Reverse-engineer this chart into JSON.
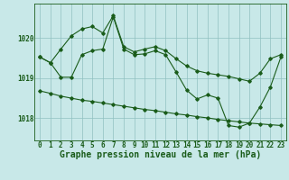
{
  "title": "Graphe pression niveau de la mer (hPa)",
  "background_color": "#c8e8e8",
  "grid_color": "#90c0c0",
  "line_color": "#1a5c1a",
  "x_labels": [
    "0",
    "1",
    "2",
    "3",
    "4",
    "5",
    "6",
    "7",
    "8",
    "9",
    "10",
    "11",
    "12",
    "13",
    "14",
    "15",
    "16",
    "17",
    "18",
    "19",
    "20",
    "21",
    "22",
    "23"
  ],
  "yticks": [
    1018,
    1019,
    1020
  ],
  "ylim": [
    1017.45,
    1020.85
  ],
  "xlim": [
    -0.5,
    23.5
  ],
  "series_high": [
    1019.52,
    1019.38,
    1019.72,
    1020.05,
    1020.22,
    1020.28,
    1020.12,
    1020.55,
    1019.78,
    1019.65,
    1019.72,
    1019.78,
    1019.68,
    1019.48,
    1019.3,
    1019.18,
    1019.12,
    1019.08,
    1019.04,
    1018.98,
    1018.92,
    1019.12,
    1019.48,
    1019.58
  ],
  "series_mid": [
    1019.52,
    1019.38,
    1019.02,
    1019.02,
    1019.58,
    1019.68,
    1019.72,
    1020.52,
    1019.72,
    1019.58,
    1019.6,
    1019.68,
    1019.58,
    1019.15,
    1018.7,
    1018.48,
    1018.58,
    1018.5,
    1017.82,
    1017.78,
    1017.88,
    1018.28,
    1018.78,
    1019.52
  ],
  "series_low": [
    1018.68,
    1018.62,
    1018.55,
    1018.5,
    1018.45,
    1018.42,
    1018.38,
    1018.34,
    1018.3,
    1018.26,
    1018.22,
    1018.19,
    1018.15,
    1018.11,
    1018.08,
    1018.04,
    1018.01,
    1017.97,
    1017.94,
    1017.91,
    1017.88,
    1017.86,
    1017.84,
    1017.82
  ],
  "title_fontsize": 7.0,
  "tick_fontsize": 5.5
}
